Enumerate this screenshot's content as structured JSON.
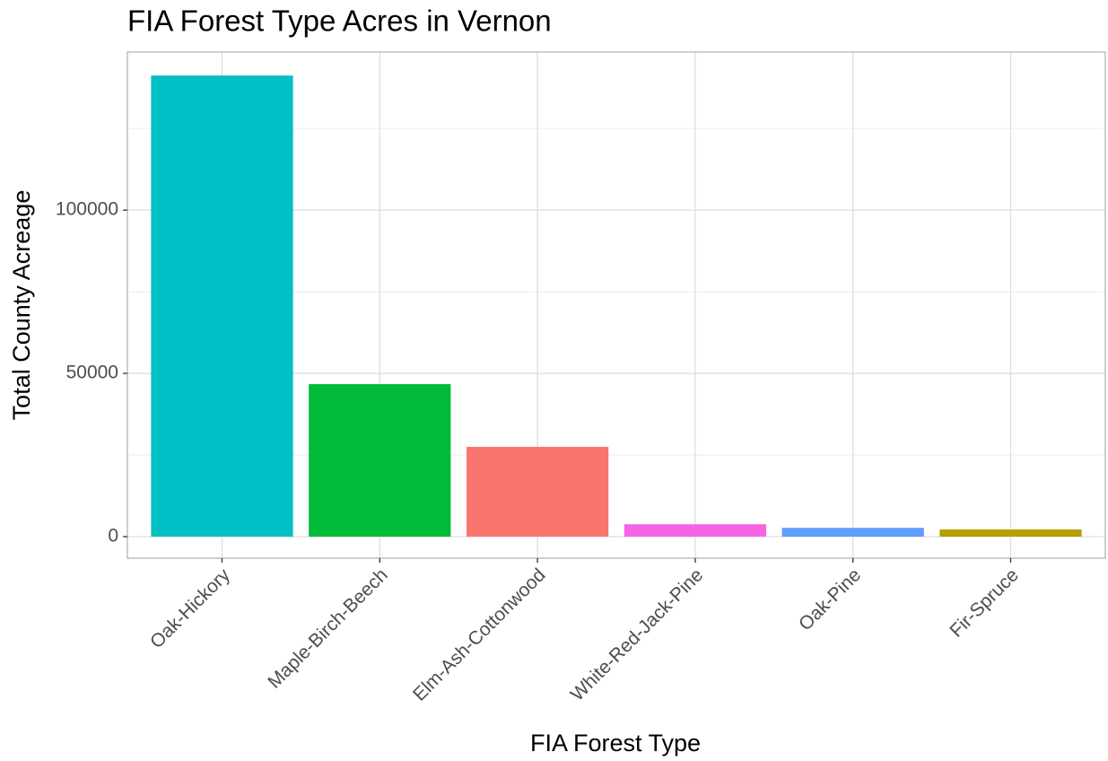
{
  "chart_data": {
    "type": "bar",
    "title": "FIA Forest Type Acres in Vernon",
    "x_label": "FIA Forest Type",
    "y_label": "Total County Acreage",
    "categories": [
      "Oak-Hickory",
      "Maple-Birch-Beech",
      "Elm-Ash-Cottonwood",
      "White-Red-Jack-Pine",
      "Oak-Pine",
      "Fir-Spruce"
    ],
    "values": [
      141200,
      46700,
      27500,
      3800,
      2700,
      2200
    ],
    "colors": [
      "#00BFC4",
      "#00BA38",
      "#F8766D",
      "#F564E3",
      "#619CFF",
      "#B79F00"
    ],
    "ylim": [
      -6600,
      148400
    ],
    "yticks": [
      0,
      50000,
      100000
    ],
    "grid": true
  }
}
